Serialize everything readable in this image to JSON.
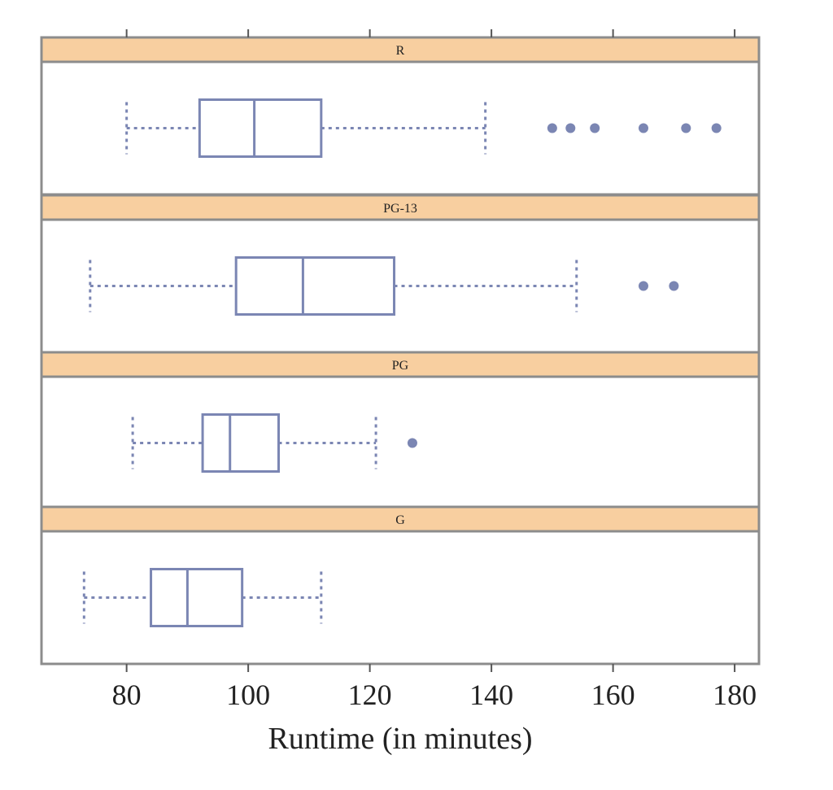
{
  "chart_data": {
    "type": "box",
    "xlabel": "Runtime (in minutes)",
    "xlim": [
      66,
      184
    ],
    "xticks": [
      80,
      100,
      120,
      140,
      160,
      180
    ],
    "xtick_labels": [
      "80",
      "100",
      "120",
      "140",
      "160",
      "180"
    ],
    "colors": {
      "box": "#7b86b3",
      "strip": "#f8cfa0",
      "frame": "#8c8c8c"
    },
    "panels": [
      {
        "label": "R",
        "min": 80,
        "q1": 92,
        "median": 101,
        "q3": 112,
        "max": 139,
        "outliers": [
          150,
          153,
          157,
          165,
          172,
          177
        ]
      },
      {
        "label": "PG-13",
        "min": 74,
        "q1": 98,
        "median": 109,
        "q3": 124,
        "max": 154,
        "outliers": [
          165,
          170
        ]
      },
      {
        "label": "PG",
        "min": 81,
        "q1": 92.5,
        "median": 97,
        "q3": 105,
        "max": 121,
        "outliers": [
          127
        ]
      },
      {
        "label": "G",
        "min": 73,
        "q1": 84,
        "median": 90,
        "q3": 99,
        "max": 112,
        "outliers": []
      }
    ]
  }
}
